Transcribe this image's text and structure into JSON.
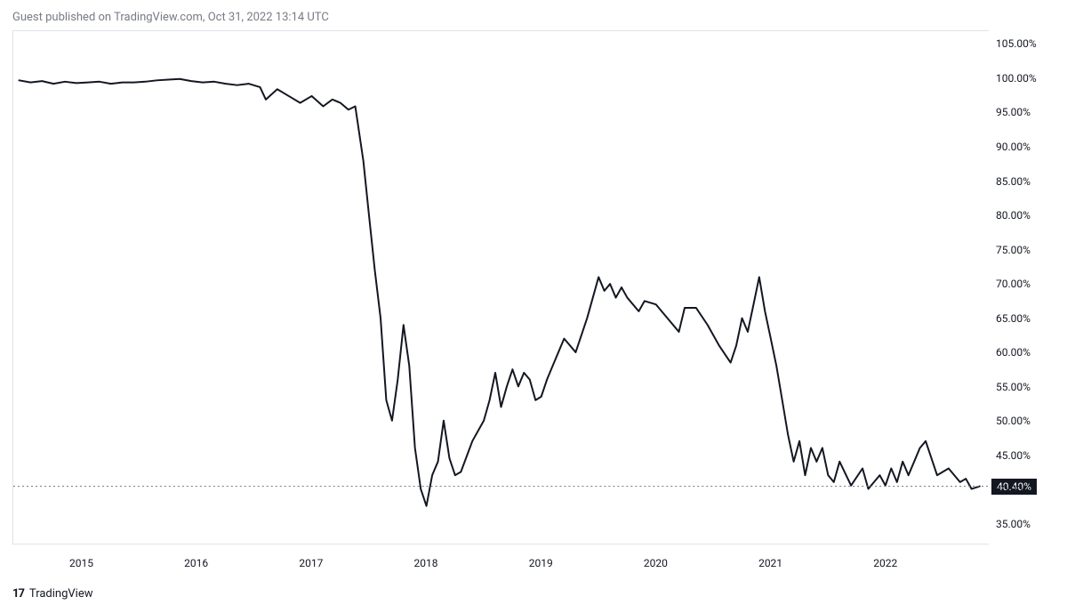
{
  "header": {
    "text": "Guest published on TradingView.com, Oct 31, 2022 13:14 UTC"
  },
  "footer": {
    "brand": "TradingView"
  },
  "chart": {
    "type": "line",
    "background_color": "#ffffff",
    "border_color": "#e0e3eb",
    "line_color": "#131722",
    "line_width": 2,
    "dotted_line_color": "#787b86",
    "current_value": 40.4,
    "current_label": "40.40%",
    "current_badge_bg": "#131722",
    "current_badge_fg": "#ffffff",
    "y_axis": {
      "min": 32,
      "max": 107,
      "ticks": [
        35,
        40,
        45,
        50,
        55,
        60,
        65,
        70,
        75,
        80,
        85,
        90,
        95,
        100,
        105
      ],
      "tick_suffix": ".00%",
      "label_color": "#131722",
      "label_fontsize": 12
    },
    "x_axis": {
      "min": 2014.4,
      "max": 2022.9,
      "ticks": [
        2015,
        2016,
        2017,
        2018,
        2019,
        2020,
        2021,
        2022
      ],
      "label_color": "#131722",
      "label_fontsize": 12
    },
    "series": [
      {
        "x": 2014.45,
        "y": 99.8
      },
      {
        "x": 2014.55,
        "y": 99.5
      },
      {
        "x": 2014.65,
        "y": 99.7
      },
      {
        "x": 2014.75,
        "y": 99.3
      },
      {
        "x": 2014.85,
        "y": 99.6
      },
      {
        "x": 2014.95,
        "y": 99.4
      },
      {
        "x": 2015.05,
        "y": 99.5
      },
      {
        "x": 2015.15,
        "y": 99.6
      },
      {
        "x": 2015.25,
        "y": 99.3
      },
      {
        "x": 2015.35,
        "y": 99.5
      },
      {
        "x": 2015.45,
        "y": 99.5
      },
      {
        "x": 2015.55,
        "y": 99.6
      },
      {
        "x": 2015.65,
        "y": 99.8
      },
      {
        "x": 2015.75,
        "y": 99.9
      },
      {
        "x": 2015.85,
        "y": 100.0
      },
      {
        "x": 2015.95,
        "y": 99.7
      },
      {
        "x": 2016.05,
        "y": 99.5
      },
      {
        "x": 2016.15,
        "y": 99.6
      },
      {
        "x": 2016.25,
        "y": 99.3
      },
      {
        "x": 2016.35,
        "y": 99.1
      },
      {
        "x": 2016.45,
        "y": 99.3
      },
      {
        "x": 2016.55,
        "y": 98.8
      },
      {
        "x": 2016.6,
        "y": 97.0
      },
      {
        "x": 2016.7,
        "y": 98.5
      },
      {
        "x": 2016.8,
        "y": 97.5
      },
      {
        "x": 2016.9,
        "y": 96.5
      },
      {
        "x": 2017.0,
        "y": 97.5
      },
      {
        "x": 2017.1,
        "y": 96.0
      },
      {
        "x": 2017.18,
        "y": 97.0
      },
      {
        "x": 2017.25,
        "y": 96.5
      },
      {
        "x": 2017.32,
        "y": 95.5
      },
      {
        "x": 2017.38,
        "y": 96.0
      },
      {
        "x": 2017.45,
        "y": 88.0
      },
      {
        "x": 2017.5,
        "y": 80.0
      },
      {
        "x": 2017.55,
        "y": 72.0
      },
      {
        "x": 2017.6,
        "y": 65.0
      },
      {
        "x": 2017.65,
        "y": 53.0
      },
      {
        "x": 2017.7,
        "y": 50.0
      },
      {
        "x": 2017.75,
        "y": 56.0
      },
      {
        "x": 2017.8,
        "y": 64.0
      },
      {
        "x": 2017.85,
        "y": 58.0
      },
      {
        "x": 2017.9,
        "y": 46.0
      },
      {
        "x": 2017.95,
        "y": 40.0
      },
      {
        "x": 2018.0,
        "y": 37.5
      },
      {
        "x": 2018.05,
        "y": 42.0
      },
      {
        "x": 2018.1,
        "y": 44.0
      },
      {
        "x": 2018.15,
        "y": 50.0
      },
      {
        "x": 2018.2,
        "y": 44.5
      },
      {
        "x": 2018.25,
        "y": 42.0
      },
      {
        "x": 2018.3,
        "y": 42.5
      },
      {
        "x": 2018.4,
        "y": 47.0
      },
      {
        "x": 2018.5,
        "y": 50.0
      },
      {
        "x": 2018.55,
        "y": 53.0
      },
      {
        "x": 2018.6,
        "y": 57.0
      },
      {
        "x": 2018.65,
        "y": 52.0
      },
      {
        "x": 2018.7,
        "y": 55.0
      },
      {
        "x": 2018.75,
        "y": 57.5
      },
      {
        "x": 2018.8,
        "y": 55.0
      },
      {
        "x": 2018.85,
        "y": 57.0
      },
      {
        "x": 2018.9,
        "y": 56.0
      },
      {
        "x": 2018.95,
        "y": 53.0
      },
      {
        "x": 2019.0,
        "y": 53.5
      },
      {
        "x": 2019.05,
        "y": 56.0
      },
      {
        "x": 2019.1,
        "y": 58.0
      },
      {
        "x": 2019.2,
        "y": 62.0
      },
      {
        "x": 2019.3,
        "y": 60.0
      },
      {
        "x": 2019.4,
        "y": 65.0
      },
      {
        "x": 2019.5,
        "y": 71.0
      },
      {
        "x": 2019.55,
        "y": 69.0
      },
      {
        "x": 2019.6,
        "y": 70.0
      },
      {
        "x": 2019.65,
        "y": 68.0
      },
      {
        "x": 2019.7,
        "y": 69.5
      },
      {
        "x": 2019.75,
        "y": 68.0
      },
      {
        "x": 2019.85,
        "y": 66.0
      },
      {
        "x": 2019.9,
        "y": 67.5
      },
      {
        "x": 2020.0,
        "y": 67.0
      },
      {
        "x": 2020.1,
        "y": 65.0
      },
      {
        "x": 2020.2,
        "y": 63.0
      },
      {
        "x": 2020.25,
        "y": 66.5
      },
      {
        "x": 2020.35,
        "y": 66.5
      },
      {
        "x": 2020.45,
        "y": 64.0
      },
      {
        "x": 2020.55,
        "y": 61.0
      },
      {
        "x": 2020.65,
        "y": 58.5
      },
      {
        "x": 2020.7,
        "y": 61.0
      },
      {
        "x": 2020.75,
        "y": 65.0
      },
      {
        "x": 2020.8,
        "y": 63.0
      },
      {
        "x": 2020.85,
        "y": 67.0
      },
      {
        "x": 2020.9,
        "y": 71.0
      },
      {
        "x": 2020.95,
        "y": 66.0
      },
      {
        "x": 2021.0,
        "y": 62.0
      },
      {
        "x": 2021.05,
        "y": 58.0
      },
      {
        "x": 2021.1,
        "y": 53.0
      },
      {
        "x": 2021.15,
        "y": 48.0
      },
      {
        "x": 2021.2,
        "y": 44.0
      },
      {
        "x": 2021.25,
        "y": 47.0
      },
      {
        "x": 2021.3,
        "y": 42.0
      },
      {
        "x": 2021.35,
        "y": 46.0
      },
      {
        "x": 2021.4,
        "y": 44.0
      },
      {
        "x": 2021.45,
        "y": 46.0
      },
      {
        "x": 2021.5,
        "y": 42.0
      },
      {
        "x": 2021.55,
        "y": 41.0
      },
      {
        "x": 2021.6,
        "y": 44.0
      },
      {
        "x": 2021.7,
        "y": 40.5
      },
      {
        "x": 2021.8,
        "y": 43.0
      },
      {
        "x": 2021.85,
        "y": 40.0
      },
      {
        "x": 2021.95,
        "y": 42.0
      },
      {
        "x": 2022.0,
        "y": 40.5
      },
      {
        "x": 2022.05,
        "y": 43.0
      },
      {
        "x": 2022.1,
        "y": 41.0
      },
      {
        "x": 2022.15,
        "y": 44.0
      },
      {
        "x": 2022.2,
        "y": 42.0
      },
      {
        "x": 2022.3,
        "y": 46.0
      },
      {
        "x": 2022.35,
        "y": 47.0
      },
      {
        "x": 2022.45,
        "y": 42.0
      },
      {
        "x": 2022.55,
        "y": 43.0
      },
      {
        "x": 2022.65,
        "y": 41.0
      },
      {
        "x": 2022.7,
        "y": 41.5
      },
      {
        "x": 2022.75,
        "y": 40.0
      },
      {
        "x": 2022.82,
        "y": 40.4
      }
    ]
  }
}
